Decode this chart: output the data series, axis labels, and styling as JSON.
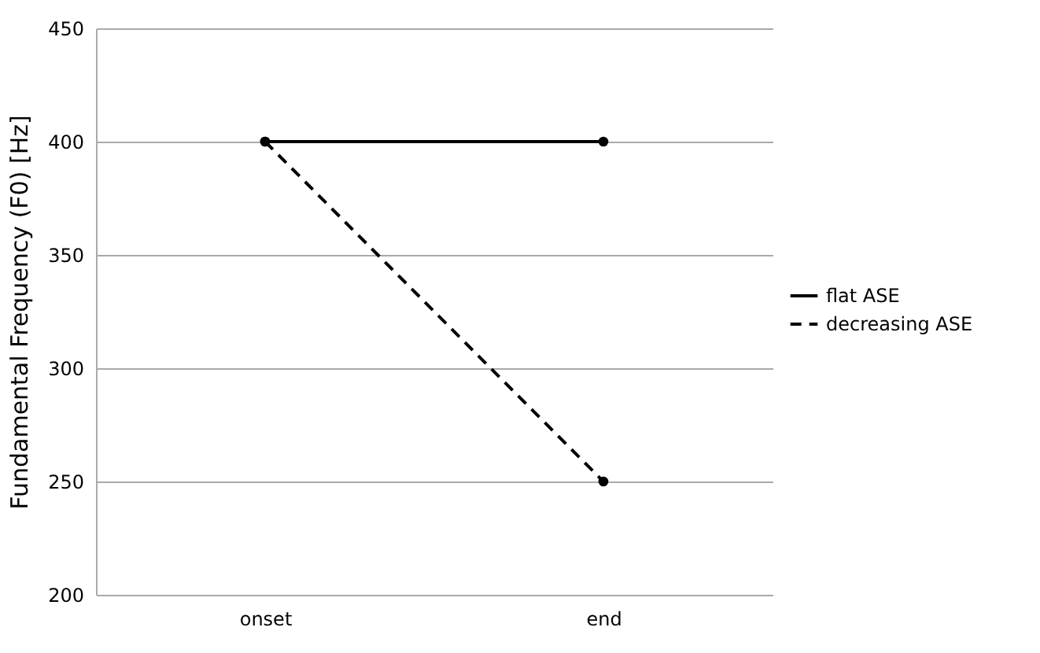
{
  "chart_data": {
    "type": "line",
    "ylabel": "Fundamental Frequency (F0) [Hz]",
    "categories": [
      "onset",
      "end"
    ],
    "series": [
      {
        "name": "flat ASE",
        "color": "#000000",
        "line_style": "solid",
        "values": [
          400,
          400
        ]
      },
      {
        "name": "decreasing ASE",
        "color": "#000000",
        "line_style": "dashed",
        "values": [
          400,
          250
        ]
      }
    ],
    "ylim": [
      200,
      450
    ],
    "yticks": [
      200,
      250,
      300,
      350,
      400,
      450
    ],
    "grid": "y",
    "legend": "right",
    "marker": "circle"
  }
}
